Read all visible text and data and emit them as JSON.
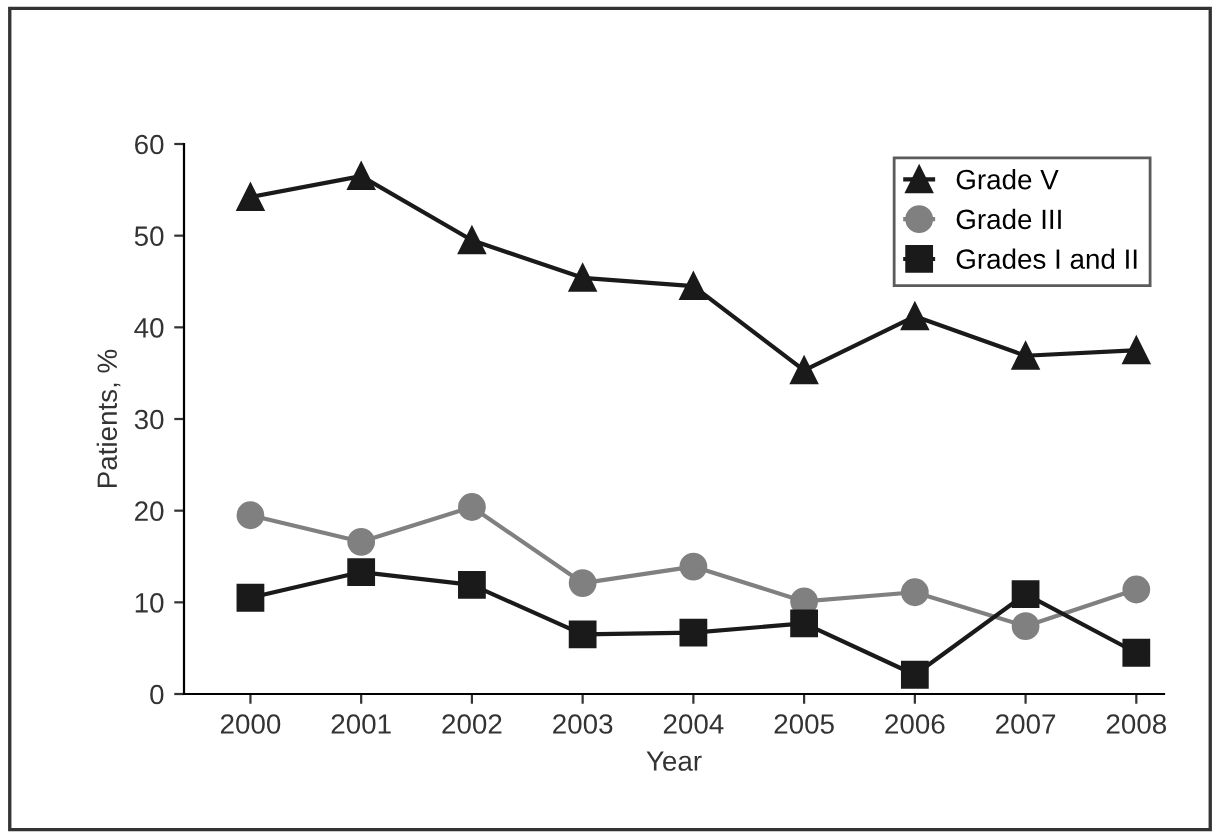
{
  "chart_data": {
    "type": "line",
    "xlabel": "Year",
    "ylabel": "Patients, %",
    "x": [
      2000,
      2001,
      2002,
      2003,
      2004,
      2005,
      2006,
      2007,
      2008
    ],
    "xlim": [
      1999.4,
      2008.25
    ],
    "xticks": [
      2000,
      2001,
      2002,
      2003,
      2004,
      2005,
      2006,
      2007,
      2008
    ],
    "ylim": [
      0,
      60
    ],
    "yticks": [
      0,
      10,
      20,
      30,
      40,
      50,
      60
    ],
    "grid": false,
    "legend": "top right",
    "line_style": "solid",
    "series": [
      {
        "name": "Grade V",
        "color": "#1a1a1a",
        "marker": "triangle",
        "values": [
          54.2,
          56.5,
          49.5,
          45.4,
          44.5,
          35.3,
          41.2,
          36.9,
          37.5
        ]
      },
      {
        "name": "Grade III",
        "color": "#808080",
        "marker": "circle",
        "values": [
          19.5,
          16.6,
          20.4,
          12.1,
          13.9,
          10.1,
          11.1,
          7.4,
          11.4
        ]
      },
      {
        "name": "Grades I and II",
        "color": "#1a1a1a",
        "marker": "square",
        "values": [
          10.5,
          13.3,
          11.9,
          6.5,
          6.7,
          7.7,
          2.1,
          10.9,
          4.5
        ]
      }
    ]
  }
}
